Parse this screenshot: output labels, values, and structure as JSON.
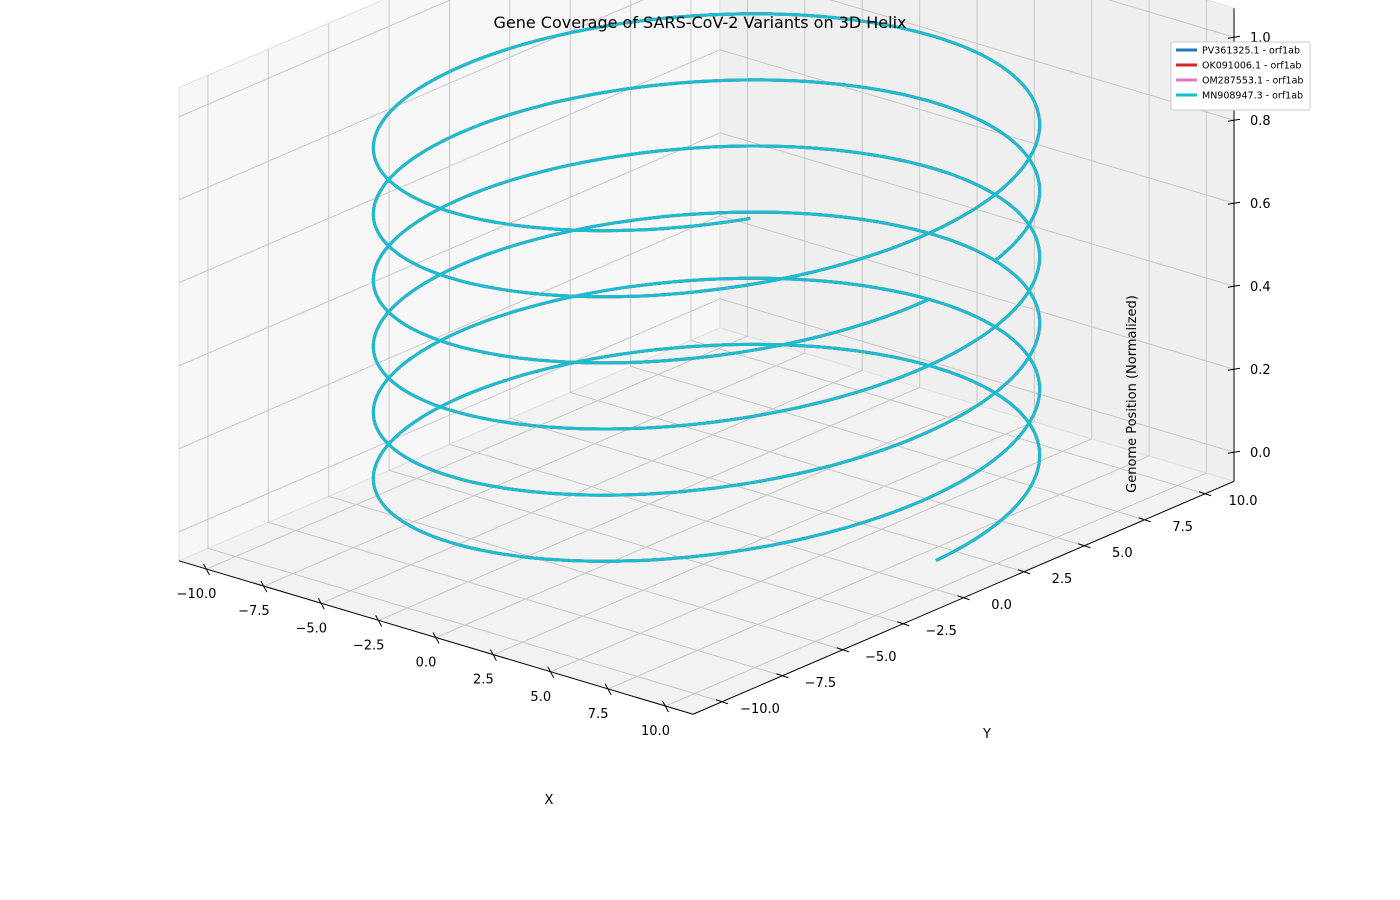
{
  "chart_data": {
    "type": "line",
    "projection": "3d",
    "title": "Gene Coverage of SARS-CoV-2 Variants on 3D Helix",
    "xlabel": "X",
    "ylabel": "Y",
    "zlabel": "Genome Position (Normalized)",
    "xlim": [
      -10,
      10
    ],
    "ylim": [
      -10,
      10
    ],
    "zlim": [
      0,
      1
    ],
    "x_ticks": [
      "−10.0",
      "−7.5",
      "−5.0",
      "−2.5",
      "0.0",
      "2.5",
      "5.0",
      "7.5",
      "10.0"
    ],
    "y_ticks": [
      "−10.0",
      "−7.5",
      "−5.0",
      "−2.5",
      "0.0",
      "2.5",
      "5.0",
      "7.5",
      "10.0"
    ],
    "z_ticks": [
      "0.0",
      "0.2",
      "0.4",
      "0.6",
      "0.8",
      "1.0"
    ],
    "grid": true,
    "legend_position": "top-right",
    "helix": {
      "radius": 10,
      "turns": 5.9,
      "z_start": 0,
      "z_end": 0.94,
      "gap_at_z": [
        0.63,
        0.66
      ]
    },
    "series": [
      {
        "name": "PV361325.1 - orf1ab",
        "color": "#1f77b4",
        "gene": "orf1ab"
      },
      {
        "name": "OK091006.1 - orf1ab",
        "color": "#d62728",
        "gene": "orf1ab"
      },
      {
        "name": "OM287553.1 - orf1ab",
        "color": "#e377c2",
        "gene": "orf1ab"
      },
      {
        "name": "MN908947.3 - orf1ab",
        "color": "#17becf",
        "gene": "orf1ab"
      }
    ]
  }
}
